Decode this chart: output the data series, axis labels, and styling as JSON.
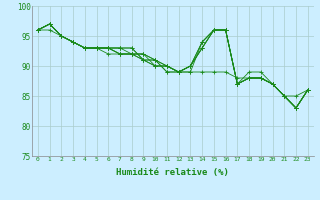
{
  "xlabel": "Humidité relative (%)",
  "bg_color": "#cceeff",
  "grid_color": "#aacccc",
  "line_color": "#1a8a1a",
  "ylim": [
    75,
    100
  ],
  "xlim": [
    -0.5,
    23.5
  ],
  "yticks": [
    75,
    80,
    85,
    90,
    95,
    100
  ],
  "xticks": [
    0,
    1,
    2,
    3,
    4,
    5,
    6,
    7,
    8,
    9,
    10,
    11,
    12,
    13,
    14,
    15,
    16,
    17,
    18,
    19,
    20,
    21,
    22,
    23
  ],
  "series": [
    [
      96,
      97,
      95,
      94,
      93,
      93,
      93,
      93,
      92,
      92,
      91,
      89,
      89,
      90,
      94,
      96,
      96,
      87,
      89,
      89,
      87,
      85,
      85,
      86
    ],
    [
      96,
      97,
      95,
      94,
      93,
      93,
      93,
      92,
      92,
      92,
      91,
      89,
      89,
      90,
      94,
      96,
      96,
      87,
      88,
      88,
      87,
      85,
      83,
      86
    ],
    [
      96,
      97,
      95,
      94,
      93,
      93,
      93,
      92,
      92,
      92,
      90,
      90,
      89,
      90,
      93,
      96,
      96,
      87,
      88,
      88,
      87,
      85,
      83,
      86
    ],
    [
      96,
      97,
      95,
      94,
      93,
      93,
      93,
      92,
      92,
      91,
      91,
      90,
      89,
      90,
      93,
      96,
      96,
      87,
      88,
      88,
      87,
      85,
      83,
      86
    ],
    [
      96,
      97,
      95,
      94,
      93,
      93,
      93,
      93,
      93,
      91,
      91,
      90,
      89,
      90,
      93,
      96,
      96,
      87,
      88,
      88,
      87,
      85,
      83,
      86
    ],
    [
      96,
      97,
      95,
      94,
      93,
      93,
      93,
      93,
      93,
      91,
      90,
      90,
      89,
      89,
      94,
      96,
      96,
      87,
      88,
      88,
      87,
      85,
      83,
      86
    ],
    [
      96,
      96,
      95,
      94,
      93,
      93,
      92,
      92,
      92,
      91,
      90,
      90,
      89,
      89,
      89,
      89,
      89,
      88,
      88,
      88,
      87,
      85,
      83,
      86
    ]
  ]
}
